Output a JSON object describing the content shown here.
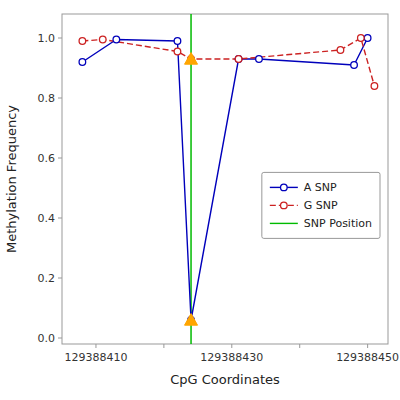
{
  "chart_data": {
    "type": "line",
    "xlabel": "CpG Coordinates",
    "ylabel": "Methylation Frequency",
    "series": [
      {
        "name": "A SNP",
        "type": "line",
        "color": "#0000BB",
        "line_style": "solid",
        "marker": "circle",
        "x": [
          129388408,
          129388413,
          129388422,
          129388424,
          129388431,
          129388434,
          129388448,
          129388450
        ],
        "values": [
          0.92,
          0.995,
          0.99,
          0.06,
          0.93,
          0.93,
          0.91,
          1.0
        ]
      },
      {
        "name": "G SNP",
        "type": "line",
        "color": "#CC2222",
        "line_style": "dashed",
        "marker": "circle",
        "x": [
          129388408,
          129388411,
          129388422,
          129388424,
          129388431,
          129388446,
          129388449,
          129388451
        ],
        "values": [
          0.99,
          0.995,
          0.955,
          0.93,
          0.93,
          0.96,
          1.0,
          0.84
        ]
      },
      {
        "name": "SNP Position",
        "type": "vline",
        "color": "#00BB00",
        "line_style": "solid",
        "x": [
          129388424
        ]
      },
      {
        "type": "scatter",
        "color": "#FFA500",
        "marker": "triangle",
        "x": [
          129388424,
          129388424
        ],
        "values": [
          0.06,
          0.93
        ]
      }
    ],
    "xlim": [
      129388405,
      129388453
    ],
    "ylim": [
      -0.02,
      1.08
    ],
    "xticks": [
      129388410,
      {
        "value": 129388420,
        "label": null
      },
      129388430,
      {
        "value": 129388440,
        "label": null
      },
      129388450
    ],
    "yticks": [
      {
        "value": 0.0,
        "label": "0.0"
      },
      0.2,
      0.4,
      0.6,
      0.8,
      {
        "value": 1.0,
        "label": "1.0"
      }
    ],
    "grid": false,
    "legend": "right"
  }
}
